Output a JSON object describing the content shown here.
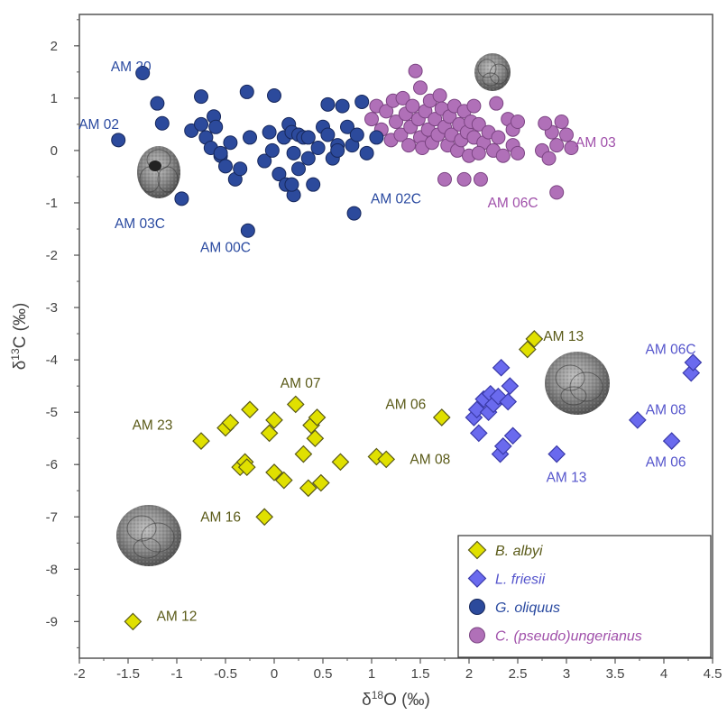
{
  "chart_data": {
    "type": "scatter",
    "xlabel": "δ18O (‰)",
    "ylabel": "δ13C (‰)",
    "xlim": [
      -2,
      4.5
    ],
    "ylim": [
      -9.7,
      2.6
    ],
    "x_ticks": [
      "-2",
      "-1.5",
      "-1",
      "-0.5",
      "0",
      "0.5",
      "1",
      "1.5",
      "2",
      "2.5",
      "3",
      "3.5",
      "4",
      "4.5"
    ],
    "x_tick_values": [
      -2,
      -1.5,
      -1,
      -0.5,
      0,
      0.5,
      1,
      1.5,
      2,
      2.5,
      3,
      3.5,
      4,
      4.5
    ],
    "y_ticks": [
      "2",
      "1",
      "0",
      "-1",
      "-2",
      "-3",
      "-4",
      "-5",
      "-6",
      "-7",
      "-8",
      "-9"
    ],
    "y_tick_values": [
      2,
      1,
      0,
      -1,
      -2,
      -3,
      -4,
      -5,
      -6,
      -7,
      -8,
      -9
    ],
    "grid": false,
    "legend_position": "bottom-right",
    "series": [
      {
        "name": "B. albyi",
        "marker": "diamond",
        "color": "#e0e000",
        "stroke": "#5a5a18",
        "text_color": "#5a5a18",
        "points": [
          [
            -1.45,
            -9.0
          ],
          [
            -0.1,
            -7.0
          ],
          [
            -0.75,
            -5.55
          ],
          [
            -0.5,
            -5.3
          ],
          [
            -0.45,
            -5.2
          ],
          [
            -0.35,
            -6.05
          ],
          [
            -0.3,
            -5.95
          ],
          [
            -0.28,
            -6.05
          ],
          [
            -0.25,
            -4.95
          ],
          [
            -0.05,
            -5.4
          ],
          [
            0.0,
            -5.15
          ],
          [
            0.0,
            -6.15
          ],
          [
            0.1,
            -6.3
          ],
          [
            0.22,
            -4.85
          ],
          [
            0.3,
            -5.8
          ],
          [
            0.35,
            -6.45
          ],
          [
            0.38,
            -5.25
          ],
          [
            0.42,
            -5.5
          ],
          [
            0.44,
            -5.1
          ],
          [
            0.48,
            -6.35
          ],
          [
            0.68,
            -5.95
          ],
          [
            1.05,
            -5.85
          ],
          [
            1.15,
            -5.9
          ],
          [
            1.72,
            -5.1
          ],
          [
            2.6,
            -3.8
          ],
          [
            2.67,
            -3.6
          ]
        ]
      },
      {
        "name": "L. friesii",
        "marker": "diamond",
        "color": "#6a6aee",
        "stroke": "#3a3aaa",
        "text_color": "#5555cc",
        "points": [
          [
            2.05,
            -5.1
          ],
          [
            2.08,
            -4.95
          ],
          [
            2.1,
            -5.4
          ],
          [
            2.15,
            -4.75
          ],
          [
            2.2,
            -5.0
          ],
          [
            2.22,
            -4.65
          ],
          [
            2.25,
            -4.85
          ],
          [
            2.3,
            -4.7
          ],
          [
            2.32,
            -5.8
          ],
          [
            2.33,
            -4.15
          ],
          [
            2.35,
            -5.65
          ],
          [
            2.4,
            -4.8
          ],
          [
            2.42,
            -4.5
          ],
          [
            2.45,
            -5.45
          ],
          [
            2.9,
            -5.8
          ],
          [
            3.73,
            -5.15
          ],
          [
            4.08,
            -5.55
          ],
          [
            4.28,
            -4.25
          ],
          [
            4.3,
            -4.05
          ]
        ]
      },
      {
        "name": "G. oliquus",
        "marker": "circle",
        "color": "#2c4a9c",
        "stroke": "#17285c",
        "text_color": "#2a4aa0",
        "points": [
          [
            -1.6,
            0.2
          ],
          [
            -1.35,
            1.48
          ],
          [
            -1.2,
            0.9
          ],
          [
            -1.15,
            0.52
          ],
          [
            -0.85,
            0.38
          ],
          [
            -0.75,
            0.5
          ],
          [
            -0.75,
            1.03
          ],
          [
            -0.7,
            0.25
          ],
          [
            -0.65,
            0.05
          ],
          [
            -0.62,
            0.65
          ],
          [
            -0.6,
            0.45
          ],
          [
            -0.55,
            -0.1
          ],
          [
            -0.55,
            -0.05
          ],
          [
            -0.5,
            -0.3
          ],
          [
            -0.45,
            0.15
          ],
          [
            -0.4,
            -0.55
          ],
          [
            -0.35,
            -0.35
          ],
          [
            -0.28,
            1.12
          ],
          [
            -0.25,
            0.25
          ],
          [
            -0.1,
            -0.2
          ],
          [
            -0.05,
            0.35
          ],
          [
            -0.02,
            0.0
          ],
          [
            0.0,
            1.05
          ],
          [
            0.05,
            -0.45
          ],
          [
            0.1,
            0.25
          ],
          [
            0.12,
            -0.65
          ],
          [
            0.15,
            0.5
          ],
          [
            0.18,
            0.35
          ],
          [
            0.2,
            -0.05
          ],
          [
            0.25,
            0.3
          ],
          [
            0.25,
            -0.35
          ],
          [
            0.3,
            0.25
          ],
          [
            0.35,
            -0.15
          ],
          [
            0.4,
            -0.65
          ],
          [
            0.45,
            0.05
          ],
          [
            0.5,
            0.45
          ],
          [
            0.55,
            0.3
          ],
          [
            0.6,
            -0.15
          ],
          [
            0.65,
            0.1
          ],
          [
            0.7,
            0.85
          ],
          [
            0.75,
            0.45
          ],
          [
            0.8,
            0.1
          ],
          [
            0.85,
            0.3
          ],
          [
            0.95,
            -0.05
          ],
          [
            -0.95,
            -0.92
          ],
          [
            0.2,
            -0.85
          ],
          [
            0.18,
            -0.65
          ],
          [
            0.82,
            -1.2
          ],
          [
            -0.27,
            -1.53
          ],
          [
            0.9,
            0.93
          ],
          [
            0.55,
            0.88
          ],
          [
            0.35,
            0.25
          ],
          [
            1.05,
            0.25
          ],
          [
            0.65,
            0.0
          ]
        ]
      },
      {
        "name": "C. (pseudo)ungerianus",
        "marker": "circle",
        "color": "#b070b8",
        "stroke": "#7b4482",
        "text_color": "#a050aa",
        "points": [
          [
            1.0,
            0.6
          ],
          [
            1.05,
            0.85
          ],
          [
            1.1,
            0.4
          ],
          [
            1.15,
            0.75
          ],
          [
            1.2,
            0.2
          ],
          [
            1.22,
            0.95
          ],
          [
            1.25,
            0.55
          ],
          [
            1.3,
            0.3
          ],
          [
            1.32,
            1.0
          ],
          [
            1.35,
            0.7
          ],
          [
            1.38,
            0.1
          ],
          [
            1.4,
            0.45
          ],
          [
            1.42,
            0.85
          ],
          [
            1.45,
            1.52
          ],
          [
            1.48,
            0.6
          ],
          [
            1.5,
            0.25
          ],
          [
            1.5,
            1.2
          ],
          [
            1.52,
            0.05
          ],
          [
            1.55,
            0.75
          ],
          [
            1.58,
            0.4
          ],
          [
            1.6,
            0.95
          ],
          [
            1.62,
            0.15
          ],
          [
            1.65,
            0.6
          ],
          [
            1.68,
            0.3
          ],
          [
            1.7,
            1.05
          ],
          [
            1.72,
            0.8
          ],
          [
            1.75,
            0.45
          ],
          [
            1.75,
            -0.55
          ],
          [
            1.78,
            0.1
          ],
          [
            1.8,
            0.65
          ],
          [
            1.82,
            0.3
          ],
          [
            1.85,
            0.85
          ],
          [
            1.88,
            0.0
          ],
          [
            1.9,
            0.5
          ],
          [
            1.92,
            0.2
          ],
          [
            1.95,
            0.75
          ],
          [
            1.98,
            0.35
          ],
          [
            2.0,
            -0.1
          ],
          [
            2.02,
            0.55
          ],
          [
            2.05,
            0.25
          ],
          [
            2.1,
            0.5
          ],
          [
            2.12,
            -0.55
          ],
          [
            2.15,
            0.15
          ],
          [
            2.2,
            0.35
          ],
          [
            2.25,
            0.0
          ],
          [
            2.28,
            0.9
          ],
          [
            2.3,
            0.25
          ],
          [
            2.35,
            -0.1
          ],
          [
            2.4,
            0.6
          ],
          [
            2.45,
            0.4
          ],
          [
            2.45,
            0.1
          ],
          [
            2.5,
            -0.05
          ],
          [
            2.05,
            0.85
          ],
          [
            2.1,
            -0.05
          ],
          [
            2.5,
            0.55
          ],
          [
            2.75,
            0.0
          ],
          [
            2.82,
            -0.15
          ],
          [
            2.85,
            0.35
          ],
          [
            2.9,
            0.1
          ],
          [
            2.95,
            0.55
          ],
          [
            3.05,
            0.05
          ],
          [
            2.9,
            -0.8
          ],
          [
            3.0,
            0.3
          ],
          [
            2.78,
            0.52
          ],
          [
            1.95,
            -0.55
          ]
        ]
      }
    ],
    "annotations": [
      {
        "text": "AM 20",
        "x": -1.47,
        "y": 1.6,
        "series": "G. oliquus"
      },
      {
        "text": "AM 02",
        "x": -1.8,
        "y": 0.5,
        "series": "G. oliquus"
      },
      {
        "text": "AM 03C",
        "x": -1.38,
        "y": -1.4,
        "series": "G. oliquus"
      },
      {
        "text": "AM 00C",
        "x": -0.5,
        "y": -1.85,
        "series": "G. oliquus"
      },
      {
        "text": "AM 02C",
        "x": 1.25,
        "y": -0.92,
        "series": "G. oliquus"
      },
      {
        "text": "AM 06C",
        "x": 2.45,
        "y": -1.0,
        "series": "C. (pseudo)ungerianus"
      },
      {
        "text": "AM 03",
        "x": 3.3,
        "y": 0.15,
        "series": "C. (pseudo)ungerianus"
      },
      {
        "text": "AM 07",
        "x": 0.27,
        "y": -4.45,
        "series": "B. albyi"
      },
      {
        "text": "AM 23",
        "x": -1.25,
        "y": -5.25,
        "series": "B. albyi"
      },
      {
        "text": "AM 06",
        "x": 1.35,
        "y": -4.85,
        "series": "B. albyi"
      },
      {
        "text": "AM 08",
        "x": 1.6,
        "y": -5.9,
        "series": "B. albyi"
      },
      {
        "text": "AM 16",
        "x": -0.55,
        "y": -7.0,
        "series": "B. albyi"
      },
      {
        "text": "AM 12",
        "x": -1.0,
        "y": -8.9,
        "series": "B. albyi"
      },
      {
        "text": "AM 13",
        "x": 2.97,
        "y": -3.55,
        "series": "B. albyi"
      },
      {
        "text": "AM 06C",
        "x": 4.07,
        "y": -3.8,
        "series": "L. friesii"
      },
      {
        "text": "AM 08",
        "x": 4.02,
        "y": -4.95,
        "series": "L. friesii"
      },
      {
        "text": "AM 13",
        "x": 3.0,
        "y": -6.25,
        "series": "L. friesii"
      },
      {
        "text": "AM 06",
        "x": 4.02,
        "y": -5.95,
        "series": "L. friesii"
      }
    ],
    "legend": [
      "B. albyi",
      "L. friesii",
      "G. oliquus",
      "C. (pseudo)ungerianus"
    ]
  },
  "decorations": {
    "specimen_icons": [
      "foraminifera-specimen-icon-1",
      "foraminifera-specimen-icon-2",
      "foraminifera-specimen-icon-3",
      "foraminifera-specimen-icon-4"
    ]
  }
}
